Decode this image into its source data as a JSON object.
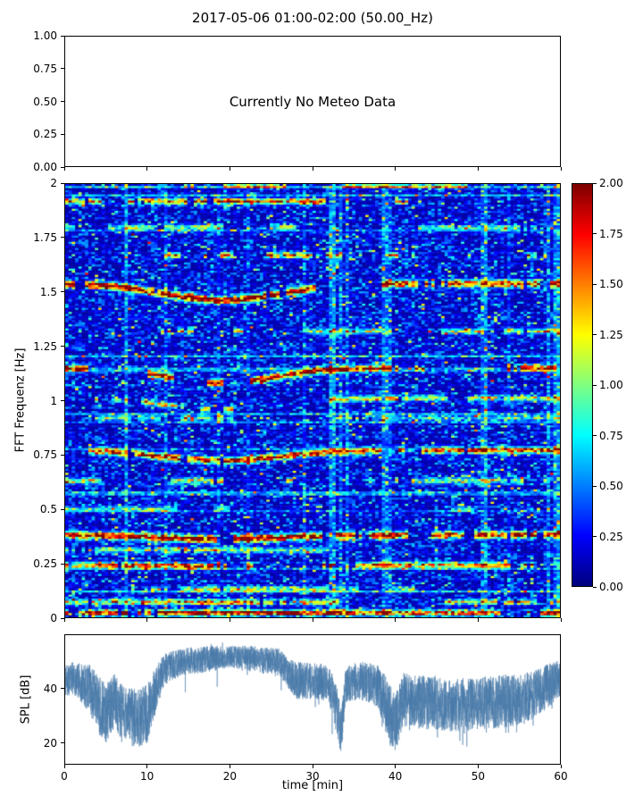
{
  "title": "2017-05-06 01:00-02:00 (50.00_Hz)",
  "meteo": {
    "message": "Currently No Meteo Data",
    "ytick_values": [
      0,
      0.25,
      0.5,
      0.75,
      1
    ],
    "ytick_labels": [
      "0.00",
      "0.25",
      "0.50",
      "0.75",
      "1.00"
    ]
  },
  "spectrogram": {
    "ylabel": "FFT Frequenz [Hz]",
    "ytick_values": [
      0,
      0.25,
      0.5,
      0.75,
      1,
      1.25,
      1.5,
      1.75,
      2
    ],
    "ytick_labels": [
      "0",
      "0.25",
      "0.5",
      "0.75",
      "1",
      "1.25",
      "1.5",
      "1.75",
      "2"
    ]
  },
  "colorbar": {
    "vmin": 0,
    "vmax": 2,
    "tick_values": [
      0,
      0.25,
      0.5,
      0.75,
      1,
      1.25,
      1.5,
      1.75,
      2
    ],
    "tick_labels": [
      "0.00",
      "0.25",
      "0.50",
      "0.75",
      "1.00",
      "1.25",
      "1.50",
      "1.75",
      "2.00"
    ]
  },
  "spl": {
    "ylabel": "SPL [dB]",
    "xlabel": "time [min]",
    "ylim": [
      12,
      60
    ],
    "ytick_values": [
      20,
      40
    ],
    "ytick_labels": [
      "20",
      "40"
    ],
    "xtick_values": [
      0,
      10,
      20,
      30,
      40,
      50,
      60
    ],
    "xtick_labels": [
      "0",
      "10",
      "20",
      "30",
      "40",
      "50",
      "60"
    ]
  },
  "chart_data": [
    {
      "type": "heatmap",
      "title": "2017-05-06 01:00-02:00 (50.00_Hz)",
      "x_range": [
        0,
        60
      ],
      "y_range": [
        0,
        2
      ],
      "xlabel": "time [min]",
      "ylabel": "FFT Frequenz [Hz]",
      "colormap": "jet",
      "clim": [
        0,
        2
      ],
      "legend_position": "right-colorbar",
      "background_level": 0.25,
      "bands": [
        {
          "f": 0.02,
          "strength": 1.9,
          "width": 0.012,
          "presence": 0.75
        },
        {
          "f": 0.07,
          "strength": 1.2,
          "width": 0.012,
          "presence": 0.5
        },
        {
          "f": 0.13,
          "strength": 0.8,
          "width": 0.012,
          "presence": 0.4
        },
        {
          "f": 0.24,
          "strength": 1.5,
          "width": 0.013,
          "presence": 0.6,
          "dip": 0.02,
          "dip_center": 19,
          "dip_width": 10
        },
        {
          "f": 0.31,
          "strength": 0.8,
          "width": 0.012,
          "presence": 0.4
        },
        {
          "f": 0.38,
          "strength": 1.9,
          "width": 0.016,
          "presence": 0.85,
          "dip": 0.05,
          "dip_center": 19,
          "dip_width": 11
        },
        {
          "f": 0.5,
          "strength": 0.7,
          "width": 0.012,
          "presence": 0.35
        },
        {
          "f": 0.63,
          "strength": 1.0,
          "width": 0.013,
          "presence": 0.5
        },
        {
          "f": 0.77,
          "strength": 1.6,
          "width": 0.015,
          "presence": 0.8,
          "dip": 0.06,
          "dip_center": 19,
          "dip_width": 10
        },
        {
          "f": 0.92,
          "strength": 0.7,
          "width": 0.012,
          "presence": 0.35
        },
        {
          "f": 1.01,
          "strength": 1.1,
          "width": 0.013,
          "presence": 0.5,
          "dip": 0.05,
          "dip_center": 19,
          "dip_width": 9
        },
        {
          "f": 1.15,
          "strength": 1.7,
          "width": 0.015,
          "presence": 0.7,
          "dip": 0.06,
          "dip_center": 19,
          "dip_width": 9
        },
        {
          "f": 1.32,
          "strength": 0.9,
          "width": 0.013,
          "presence": 0.4
        },
        {
          "f": 1.54,
          "strength": 1.9,
          "width": 0.016,
          "presence": 0.8,
          "dip": 0.05,
          "dip_center": 19,
          "dip_width": 10
        },
        {
          "f": 1.67,
          "strength": 1.2,
          "width": 0.013,
          "presence": 0.45
        },
        {
          "f": 1.8,
          "strength": 0.8,
          "width": 0.012,
          "presence": 0.35
        },
        {
          "f": 1.92,
          "strength": 1.4,
          "width": 0.013,
          "presence": 0.5
        },
        {
          "f": 1.99,
          "strength": 1.0,
          "width": 0.01,
          "presence": 0.4
        }
      ]
    },
    {
      "type": "line",
      "x_range": [
        0,
        60
      ],
      "ylim": [
        12,
        60
      ],
      "xlabel": "time [min]",
      "ylabel": "SPL [dB]",
      "color": "#4878a8",
      "envelope": {
        "t": [
          0,
          1,
          3,
          4,
          5,
          6,
          7,
          9,
          10,
          11,
          12,
          14,
          17,
          20,
          23,
          26,
          27,
          28,
          30,
          32,
          33,
          33.5,
          34,
          36,
          38,
          39,
          40,
          41,
          43,
          46,
          49,
          52,
          55,
          57,
          59,
          60
        ],
        "mean": [
          43,
          44,
          40,
          34,
          31,
          36,
          30,
          29,
          31,
          40,
          47,
          50,
          51,
          52,
          51,
          50,
          46,
          43,
          43,
          42,
          30,
          24,
          42,
          43,
          41,
          33,
          27,
          36,
          35,
          34,
          34,
          35,
          36,
          38,
          42,
          44
        ],
        "spread": [
          6,
          6,
          9,
          11,
          11,
          10,
          11,
          11,
          11,
          9,
          6,
          5,
          5,
          4,
          5,
          5,
          6,
          7,
          7,
          7,
          10,
          8,
          7,
          7,
          8,
          11,
          11,
          10,
          10,
          10,
          10,
          10,
          10,
          9,
          8,
          7
        ]
      }
    }
  ]
}
